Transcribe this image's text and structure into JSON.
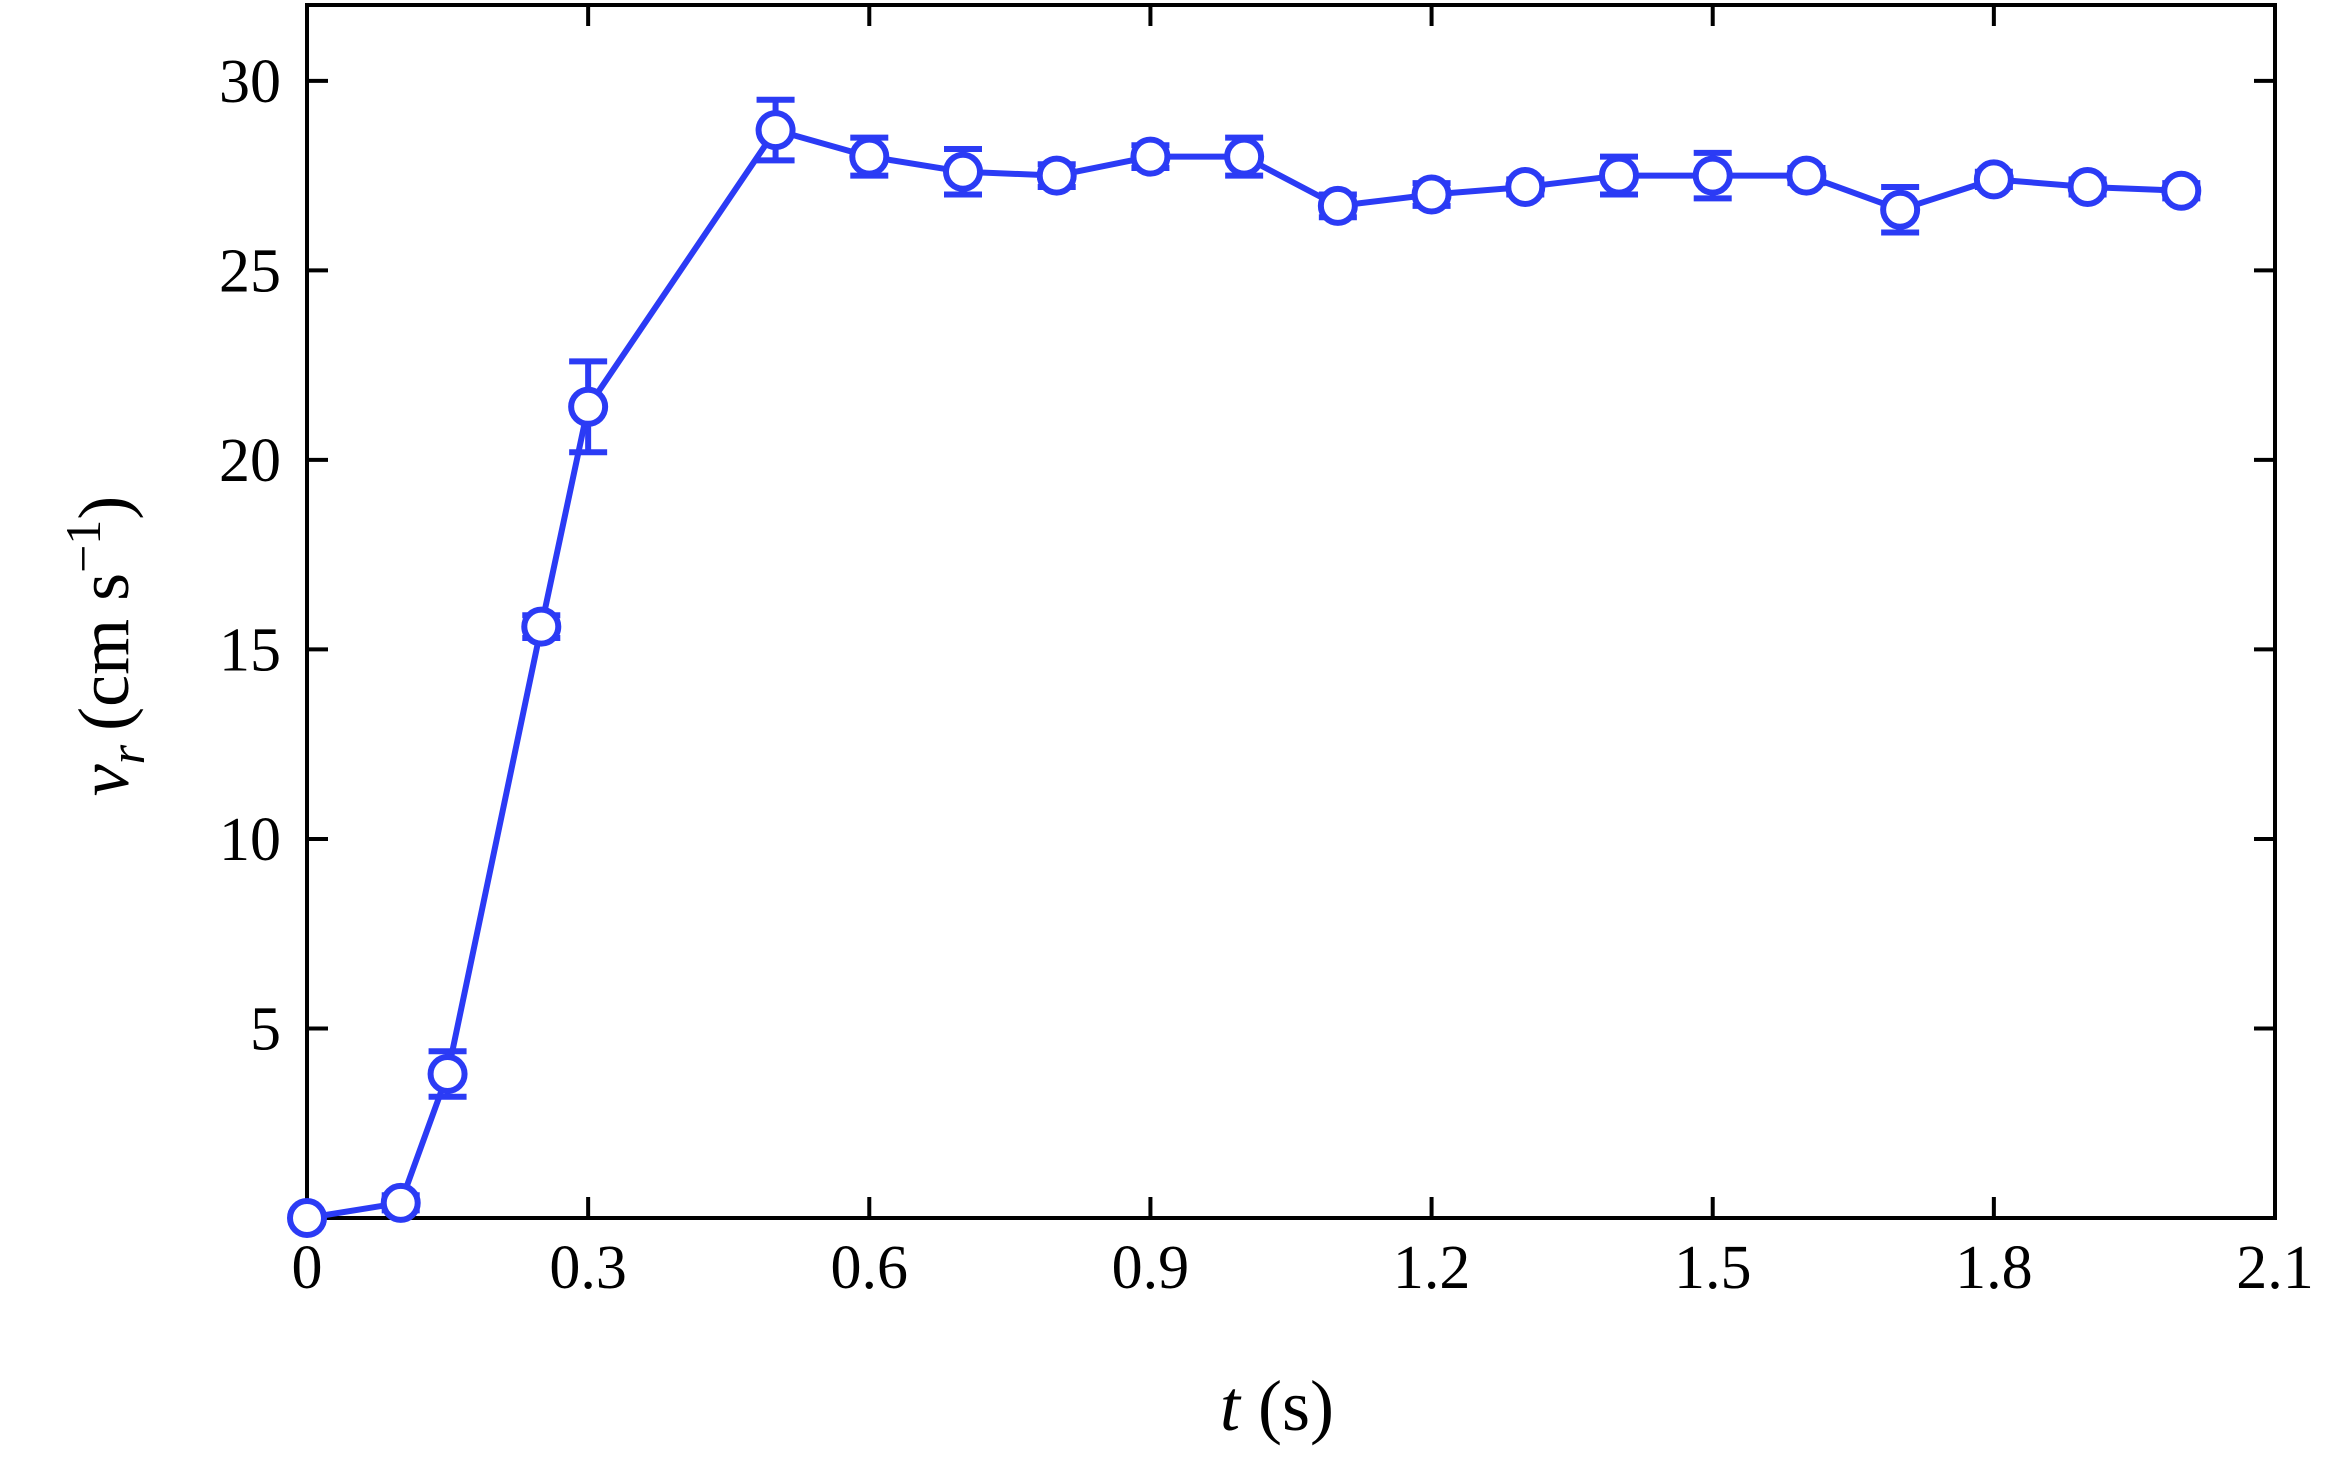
{
  "chart_data": {
    "type": "line",
    "xlabel": [
      "t",
      "(s)"
    ],
    "ylabel": [
      "v",
      "r",
      "(cm s",
      "−1",
      ")"
    ],
    "x": [
      0.0,
      0.1,
      0.15,
      0.25,
      0.3,
      0.5,
      0.6,
      0.7,
      0.8,
      0.9,
      1.0,
      1.1,
      1.2,
      1.3,
      1.4,
      1.5,
      1.6,
      1.7,
      1.8,
      1.9,
      2.0
    ],
    "series": [
      {
        "color": "#2b3bf5",
        "values": [
          0,
          0.4,
          3.8,
          15.6,
          21.4,
          28.7,
          28.0,
          27.6,
          27.5,
          28.0,
          28.0,
          26.7,
          27.0,
          27.2,
          27.5,
          27.5,
          27.5,
          26.6,
          27.4,
          27.2,
          27.1
        ],
        "errors": [
          0.1,
          0.2,
          0.6,
          0.3,
          1.2,
          0.8,
          0.5,
          0.6,
          0.3,
          0.3,
          0.5,
          0.3,
          0.3,
          0.2,
          0.5,
          0.6,
          0.2,
          0.6,
          0.2,
          0.2,
          0.2
        ]
      }
    ],
    "xlim": [
      0,
      2.1
    ],
    "xticks": [
      0,
      0.3,
      0.6,
      0.9,
      1.2,
      1.5,
      1.8,
      2.1
    ],
    "ylim": [
      0,
      32
    ],
    "yticks": [
      5,
      10,
      15,
      20,
      25,
      30
    ],
    "grid": false
  }
}
